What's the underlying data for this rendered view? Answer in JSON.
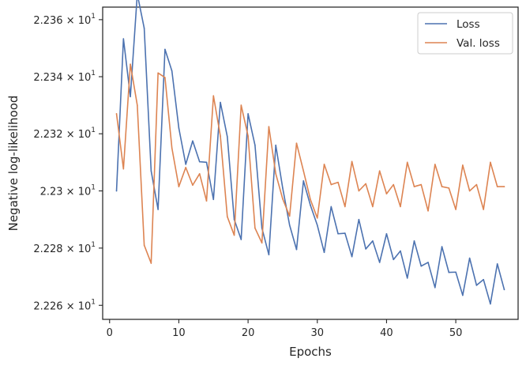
{
  "chart_data": {
    "type": "line",
    "title": "",
    "xlabel": "Epochs",
    "ylabel": "Negative log-likelihood",
    "xlim": [
      -1,
      59
    ],
    "ylim": [
      22.2551,
      22.3644
    ],
    "y_scale": "log",
    "grid": false,
    "legend": {
      "placement": "top-right"
    },
    "x_ticks": [
      {
        "value": 0,
        "label": "0"
      },
      {
        "value": 10,
        "label": "10"
      },
      {
        "value": 20,
        "label": "20"
      },
      {
        "value": 30,
        "label": "30"
      },
      {
        "value": 40,
        "label": "40"
      },
      {
        "value": 50,
        "label": "50"
      }
    ],
    "y_ticks": [
      {
        "value": 22.26,
        "mantissa": "2.226",
        "times": "×",
        "base": "10",
        "exp": "1"
      },
      {
        "value": 22.28,
        "mantissa": "2.228",
        "times": "×",
        "base": "10",
        "exp": "1"
      },
      {
        "value": 22.3,
        "mantissa": "2.23",
        "times": "×",
        "base": "10",
        "exp": "1"
      },
      {
        "value": 22.32,
        "mantissa": "2.232",
        "times": "×",
        "base": "10",
        "exp": "1"
      },
      {
        "value": 22.34,
        "mantissa": "2.234",
        "times": "×",
        "base": "10",
        "exp": "1"
      },
      {
        "value": 22.36,
        "mantissa": "2.236",
        "times": "×",
        "base": "10",
        "exp": "1"
      }
    ],
    "x": [
      1,
      2,
      3,
      4,
      5,
      6,
      7,
      8,
      9,
      10,
      11,
      12,
      13,
      14,
      15,
      16,
      17,
      18,
      19,
      20,
      21,
      22,
      23,
      24,
      25,
      26,
      27,
      28,
      29,
      30,
      31,
      32,
      33,
      34,
      35,
      36,
      37,
      38,
      39,
      40,
      41,
      42,
      43,
      44,
      45,
      46,
      47,
      48,
      49,
      50,
      51,
      52,
      53,
      54,
      55,
      56,
      57
    ],
    "series": [
      {
        "name": "Loss",
        "color": "#4c72b0",
        "values": [
          22.3,
          22.3533,
          22.333,
          22.369,
          22.357,
          22.307,
          22.2935,
          22.3496,
          22.342,
          22.322,
          22.3093,
          22.3175,
          22.3102,
          22.31,
          22.297,
          22.331,
          22.319,
          22.29,
          22.283,
          22.327,
          22.316,
          22.287,
          22.2777,
          22.316,
          22.301,
          22.288,
          22.2795,
          22.3035,
          22.295,
          22.288,
          22.2785,
          22.2945,
          22.285,
          22.2852,
          22.277,
          22.29,
          22.2797,
          22.2825,
          22.275,
          22.285,
          22.276,
          22.279,
          22.2695,
          22.2825,
          22.2737,
          22.275,
          22.2662,
          22.2805,
          22.2715,
          22.2716,
          22.2635,
          22.2765,
          22.267,
          22.269,
          22.2605,
          22.2745,
          22.2655
        ]
      },
      {
        "name": "Val. loss",
        "color": "#dd8452",
        "values": [
          22.327,
          22.3077,
          22.3444,
          22.33,
          22.281,
          22.2747,
          22.3413,
          22.3397,
          22.315,
          22.3015,
          22.3082,
          22.302,
          22.306,
          22.2965,
          22.3333,
          22.3192,
          22.291,
          22.2845,
          22.33,
          22.3192,
          22.287,
          22.2818,
          22.3225,
          22.306,
          22.2972,
          22.2912,
          22.3167,
          22.307,
          22.297,
          22.2905,
          22.3093,
          22.3022,
          22.303,
          22.2945,
          22.3103,
          22.3,
          22.3025,
          22.2945,
          22.307,
          22.299,
          22.3022,
          22.2945,
          22.31,
          22.3015,
          22.3022,
          22.293,
          22.3093,
          22.3015,
          22.301,
          22.2935,
          22.309,
          22.3,
          22.3022,
          22.2935,
          22.31,
          22.3015,
          22.3015
        ]
      }
    ]
  }
}
